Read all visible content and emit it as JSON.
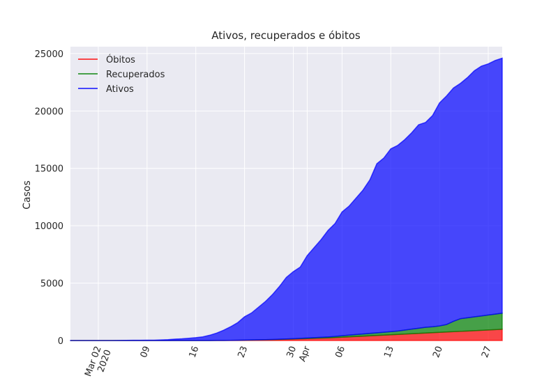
{
  "chart_data": {
    "type": "stacked_area",
    "title": "Ativos, recuperados e óbitos",
    "y_label": "Casos",
    "x": [
      "2020-02-27",
      "2020-02-28",
      "2020-02-29",
      "2020-03-01",
      "2020-03-02",
      "2020-03-03",
      "2020-03-04",
      "2020-03-05",
      "2020-03-06",
      "2020-03-07",
      "2020-03-08",
      "2020-03-09",
      "2020-03-10",
      "2020-03-11",
      "2020-03-12",
      "2020-03-13",
      "2020-03-14",
      "2020-03-15",
      "2020-03-16",
      "2020-03-17",
      "2020-03-18",
      "2020-03-19",
      "2020-03-20",
      "2020-03-21",
      "2020-03-22",
      "2020-03-23",
      "2020-03-24",
      "2020-03-25",
      "2020-03-26",
      "2020-03-27",
      "2020-03-28",
      "2020-03-29",
      "2020-03-30",
      "2020-03-31",
      "2020-04-01",
      "2020-04-02",
      "2020-04-03",
      "2020-04-04",
      "2020-04-05",
      "2020-04-06",
      "2020-04-07",
      "2020-04-08",
      "2020-04-09",
      "2020-04-10",
      "2020-04-11",
      "2020-04-12",
      "2020-04-13",
      "2020-04-14",
      "2020-04-15",
      "2020-04-16",
      "2020-04-17",
      "2020-04-18",
      "2020-04-19",
      "2020-04-20",
      "2020-04-21",
      "2020-04-22",
      "2020-04-23",
      "2020-04-24",
      "2020-04-25",
      "2020-04-26",
      "2020-04-27",
      "2020-04-28",
      "2020-04-29"
    ],
    "series": [
      {
        "name": "Óbitos",
        "color": "red",
        "values": [
          0,
          0,
          0,
          0,
          0,
          0,
          0,
          0,
          0,
          0,
          0,
          0,
          0,
          0,
          0,
          0,
          0,
          0,
          0,
          1,
          3,
          5,
          8,
          12,
          20,
          30,
          40,
          50,
          60,
          75,
          90,
          110,
          130,
          150,
          170,
          190,
          210,
          230,
          260,
          290,
          320,
          350,
          380,
          410,
          440,
          470,
          500,
          530,
          560,
          590,
          620,
          650,
          680,
          710,
          740,
          770,
          800,
          830,
          860,
          890,
          920,
          950,
          980
        ]
      },
      {
        "name": "Recuperados",
        "color": "green",
        "values": [
          0,
          0,
          0,
          0,
          0,
          0,
          0,
          0,
          0,
          0,
          0,
          0,
          0,
          0,
          0,
          0,
          0,
          0,
          0,
          0,
          0,
          0,
          0,
          2,
          5,
          8,
          10,
          12,
          15,
          18,
          20,
          25,
          30,
          40,
          50,
          60,
          70,
          80,
          100,
          130,
          150,
          170,
          190,
          210,
          230,
          250,
          270,
          300,
          350,
          400,
          450,
          500,
          520,
          560,
          650,
          900,
          1100,
          1150,
          1200,
          1250,
          1300,
          1350,
          1400
        ]
      },
      {
        "name": "Ativos",
        "color": "blue",
        "values": [
          1,
          1,
          2,
          2,
          2,
          2,
          3,
          4,
          13,
          19,
          25,
          30,
          34,
          52,
          77,
          120,
          152,
          200,
          250,
          319,
          457,
          645,
          892,
          1186,
          1525,
          2032,
          2350,
          2838,
          3325,
          3907,
          4590,
          5365,
          5840,
          6210,
          7180,
          7850,
          8520,
          9290,
          9840,
          10780,
          11230,
          11880,
          12530,
          13380,
          14730,
          15180,
          15930,
          16170,
          16590,
          17110,
          17730,
          17850,
          18400,
          19430,
          19910,
          20330,
          20500,
          20920,
          21440,
          21760,
          21880,
          22100,
          22220
        ]
      }
    ],
    "xlim": [
      "2020-02-27",
      "2020-04-29"
    ],
    "xticks": [
      {
        "value": "2020-03-02",
        "label": "Mar 02\n2020"
      },
      {
        "value": "2020-03-09",
        "label": "09"
      },
      {
        "value": "2020-03-16",
        "label": "16"
      },
      {
        "value": "2020-03-23",
        "label": "23"
      },
      {
        "value": "2020-03-30",
        "label": "30"
      },
      {
        "value": "2020-04-01",
        "label": "Apr"
      },
      {
        "value": "2020-04-06",
        "label": "06"
      },
      {
        "value": "2020-04-13",
        "label": "13"
      },
      {
        "value": "2020-04-20",
        "label": "20"
      },
      {
        "value": "2020-04-27",
        "label": "27"
      }
    ],
    "ylim": [
      0,
      25600
    ],
    "yticks": [
      0,
      5000,
      10000,
      15000,
      20000,
      25000
    ],
    "grid": true,
    "legend": "upper left",
    "fill_opacity": 0.7
  }
}
